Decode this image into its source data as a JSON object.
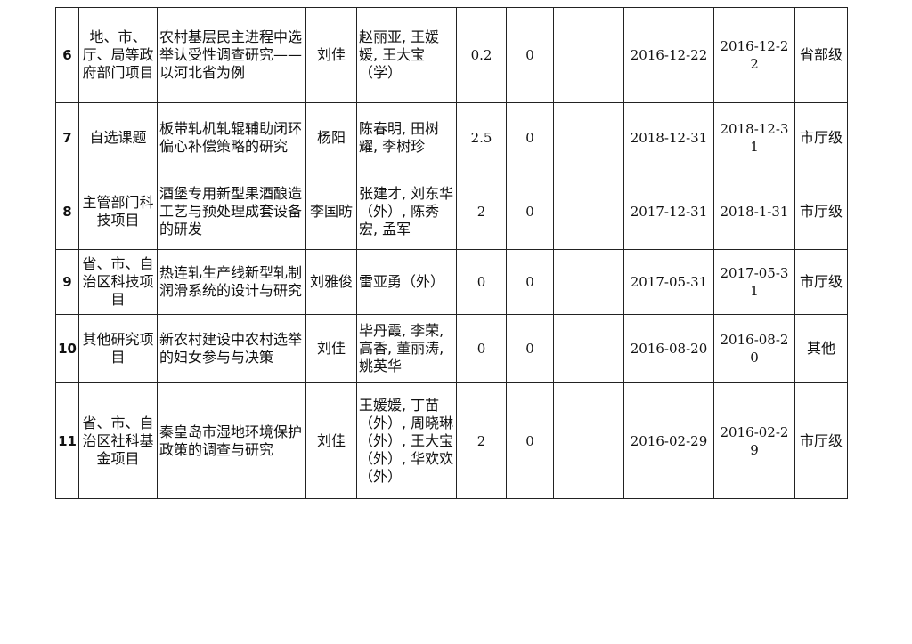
{
  "rows": [
    {
      "no": "6",
      "type": "地、市、厅、局等政府部门项目",
      "title": "农村基层民主进程中选举认受性调查研究——以河北省为例",
      "leader": "刘佳",
      "members": "赵丽亚, 王媛媛, 王大宝（学）",
      "funding": "0.2",
      "c6": "0",
      "c7": "",
      "start": "2016-12-22",
      "end": "2016-12-22",
      "level": "省部级"
    },
    {
      "no": "7",
      "type": "自选课题",
      "title": "板带轧机轧辊辅助闭环偏心补偿策略的研究",
      "leader": "杨阳",
      "members": "陈春明, 田树耀, 李树珍",
      "funding": "2.5",
      "c6": "0",
      "c7": "",
      "start": "2018-12-31",
      "end": "2018-12-31",
      "level": "市厅级"
    },
    {
      "no": "8",
      "type": "主管部门科技项目",
      "title": "酒堡专用新型果酒酿造工艺与预处理成套设备的研发",
      "leader": "李国昉",
      "members": "张建才, 刘东华（外）, 陈秀宏, 孟军",
      "funding": "2",
      "c6": "0",
      "c7": "",
      "start": "2017-12-31",
      "end": "2018-1-31",
      "level": "市厅级"
    },
    {
      "no": "9",
      "type": "省、市、自治区科技项目",
      "title": "热连轧生产线新型轧制润滑系统的设计与研究",
      "leader": "刘雅俊",
      "members": "雷亚勇（外）",
      "funding": "0",
      "c6": "0",
      "c7": "",
      "start": "2017-05-31",
      "end": "2017-05-31",
      "level": "市厅级"
    },
    {
      "no": "10",
      "type": "其他研究项目",
      "title": "新农村建设中农村选举的妇女参与与决策",
      "leader": "刘佳",
      "members": "毕丹霞, 李荣, 高香, 董丽涛, 姚英华",
      "funding": "0",
      "c6": "0",
      "c7": "",
      "start": "2016-08-20",
      "end": "2016-08-20",
      "level": "其他"
    },
    {
      "no": "11",
      "type": "省、市、自治区社科基金项目",
      "title": "秦皇岛市湿地环境保护政策的调查与研究",
      "leader": "刘佳",
      "members": "王媛媛, 丁苗（外）, 周晓琳（外）, 王大宝（外）, 华欢欢（外）",
      "funding": "2",
      "c6": "0",
      "c7": "",
      "start": "2016-02-29",
      "end": "2016-02-29",
      "level": "市厅级"
    }
  ]
}
